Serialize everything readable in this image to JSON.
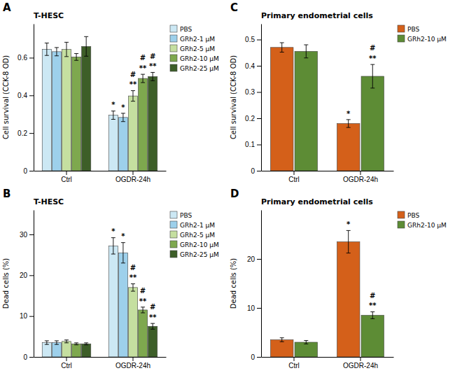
{
  "chart_data": [
    {
      "type": "bar",
      "panel_label": "A",
      "title": "T-HESC",
      "ylabel": "Cell survival (CCK-8 OD)",
      "categories": [
        "Ctrl",
        "OGDR-24h"
      ],
      "series": [
        {
          "name": "PBS",
          "color": "#cce8f4",
          "values": [
            0.645,
            0.295
          ],
          "errors": [
            0.033,
            0.022
          ]
        },
        {
          "name": "GRh2-1 μM",
          "color": "#9dd0eb",
          "values": [
            0.632,
            0.283
          ],
          "errors": [
            0.022,
            0.022
          ]
        },
        {
          "name": "GRh2-5 μM",
          "color": "#c5dfa0",
          "values": [
            0.644,
            0.397
          ],
          "errors": [
            0.038,
            0.028
          ]
        },
        {
          "name": "GRh2-10 μM",
          "color": "#7ea84e",
          "values": [
            0.604,
            0.49
          ],
          "errors": [
            0.018,
            0.022
          ]
        },
        {
          "name": "GRh2-25 μM",
          "color": "#3d5e28",
          "values": [
            0.66,
            0.5
          ],
          "errors": [
            0.052,
            0.022
          ]
        }
      ],
      "annotations": [
        {
          "category": "OGDR-24h",
          "series": "PBS",
          "text": "*"
        },
        {
          "category": "OGDR-24h",
          "series": "GRh2-1 μM",
          "text": "*"
        },
        {
          "category": "OGDR-24h",
          "series": "GRh2-5 μM",
          "text": "**\n#"
        },
        {
          "category": "OGDR-24h",
          "series": "GRh2-10 μM",
          "text": "**\n#"
        },
        {
          "category": "OGDR-24h",
          "series": "GRh2-25 μM",
          "text": "**\n#"
        }
      ],
      "ylim": [
        0,
        0.78
      ],
      "yticks": [
        0,
        0.2,
        0.4,
        0.6
      ],
      "grid": false,
      "legend": "right"
    },
    {
      "type": "bar",
      "panel_label": "B",
      "title": "T-HESC",
      "ylabel": "Dead cells (%)",
      "categories": [
        "Ctrl",
        "OGDR-24h"
      ],
      "series": [
        {
          "name": "PBS",
          "color": "#cce8f4",
          "values": [
            3.5,
            27.2
          ],
          "errors": [
            0.45,
            2.0
          ]
        },
        {
          "name": "GRh2-1 μM",
          "color": "#9dd0eb",
          "values": [
            3.5,
            25.5
          ],
          "errors": [
            0.45,
            2.5
          ]
        },
        {
          "name": "GRh2-5 μM",
          "color": "#c5dfa0",
          "values": [
            3.8,
            17.0
          ],
          "errors": [
            0.35,
            0.9
          ]
        },
        {
          "name": "GRh2-10 μM",
          "color": "#7ea84e",
          "values": [
            3.2,
            11.5
          ],
          "errors": [
            0.25,
            0.7
          ]
        },
        {
          "name": "GRh2-25 μM",
          "color": "#3d5e28",
          "values": [
            3.2,
            7.5
          ],
          "errors": [
            0.25,
            0.7
          ]
        }
      ],
      "annotations": [
        {
          "category": "OGDR-24h",
          "series": "PBS",
          "text": "*"
        },
        {
          "category": "OGDR-24h",
          "series": "GRh2-1 μM",
          "text": "*"
        },
        {
          "category": "OGDR-24h",
          "series": "GRh2-5 μM",
          "text": "**\n#"
        },
        {
          "category": "OGDR-24h",
          "series": "GRh2-10 μM",
          "text": "**\n#"
        },
        {
          "category": "OGDR-24h",
          "series": "GRh2-25 μM",
          "text": "**\n#"
        }
      ],
      "ylim": [
        0,
        36
      ],
      "yticks": [
        0,
        10,
        20,
        30
      ],
      "grid": false,
      "legend": "right"
    },
    {
      "type": "bar",
      "panel_label": "C",
      "title": "Primary endometrial cells",
      "ylabel": "Cell survival (CCK-8 OD)",
      "categories": [
        "Ctrl",
        "OGDR-24h"
      ],
      "series": [
        {
          "name": "PBS",
          "color": "#d4601a",
          "values": [
            0.47,
            0.18
          ],
          "errors": [
            0.018,
            0.015
          ]
        },
        {
          "name": "GRh2-10 μM",
          "color": "#5d8c35",
          "values": [
            0.455,
            0.36
          ],
          "errors": [
            0.025,
            0.045
          ]
        }
      ],
      "annotations": [
        {
          "category": "OGDR-24h",
          "series": "PBS",
          "text": "*"
        },
        {
          "category": "OGDR-24h",
          "series": "GRh2-10 μM",
          "text": "**\n#"
        }
      ],
      "ylim": [
        0,
        0.56
      ],
      "yticks": [
        0,
        0.1,
        0.2,
        0.3,
        0.4,
        0.5
      ],
      "grid": false,
      "legend": "right"
    },
    {
      "type": "bar",
      "panel_label": "D",
      "title": "Primary endometrial cells",
      "ylabel": "Dead cells (%)",
      "categories": [
        "Ctrl",
        "OGDR-24h"
      ],
      "series": [
        {
          "name": "PBS",
          "color": "#d4601a",
          "values": [
            3.5,
            23.5
          ],
          "errors": [
            0.4,
            2.3
          ]
        },
        {
          "name": "GRh2-10 μM",
          "color": "#5d8c35",
          "values": [
            3.0,
            8.5
          ],
          "errors": [
            0.35,
            0.7
          ]
        }
      ],
      "annotations": [
        {
          "category": "OGDR-24h",
          "series": "PBS",
          "text": "*"
        },
        {
          "category": "OGDR-24h",
          "series": "GRh2-10 μM",
          "text": "**\n#"
        }
      ],
      "ylim": [
        0,
        30
      ],
      "yticks": [
        0,
        10,
        20
      ],
      "grid": false,
      "legend": "right"
    }
  ]
}
